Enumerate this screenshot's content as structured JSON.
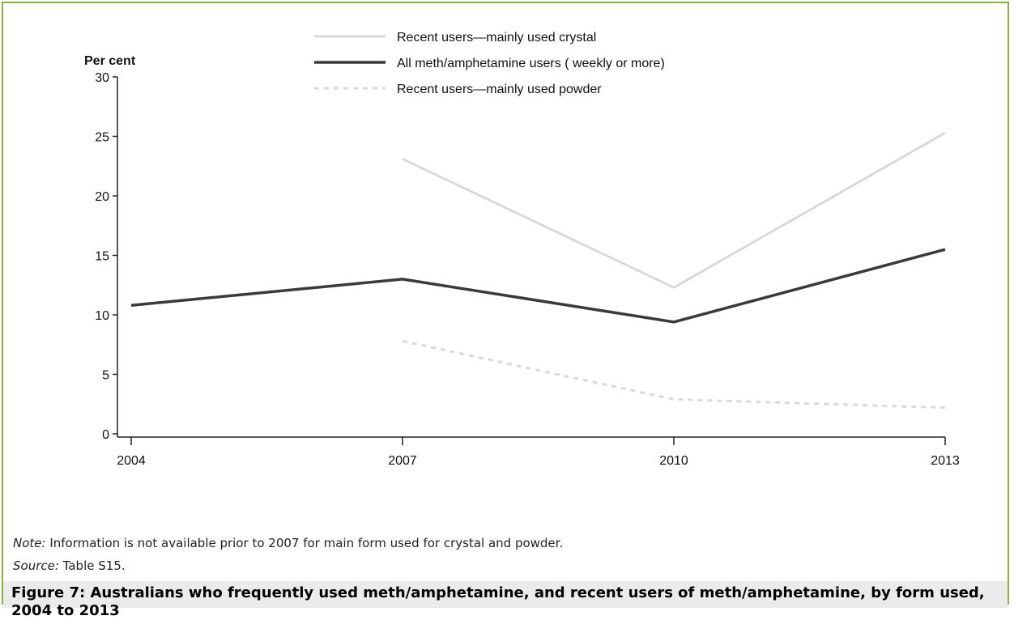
{
  "figure": {
    "title": "Figure 7: Australians who frequently used meth/amphetamine, and recent users of meth/amphetamine, by form used, 2004 to 2013",
    "note_label": "Note:",
    "note_text": " Information is not available prior to 2007 for main form used for crystal and powder.",
    "source_label": "Source:",
    "source_text": " Table S15."
  },
  "colors": {
    "frame_border": "#8ab03e",
    "crystal": "#d9d9d9",
    "all_users": "#3a3a3a",
    "powder": "#d9d9d9"
  },
  "chart_data": {
    "type": "line",
    "ylabel": "Per cent",
    "xlabel": "",
    "categories": [
      "2004",
      "2007",
      "2010",
      "2013"
    ],
    "ylim": [
      0,
      30
    ],
    "yticks": [
      0,
      5,
      10,
      15,
      20,
      25,
      30
    ],
    "grid": false,
    "legend_position": "top",
    "series": [
      {
        "name": "Recent users—mainly used crystal",
        "style": "solid-light",
        "values": [
          null,
          23.1,
          12.3,
          25.3
        ]
      },
      {
        "name": "All meth/amphetamine users ( weekly or more)",
        "style": "solid-dark",
        "values": [
          10.8,
          13.0,
          9.4,
          15.5
        ]
      },
      {
        "name": "Recent users—mainly used powder",
        "style": "dashed-light",
        "values": [
          null,
          7.8,
          2.9,
          2.2
        ]
      }
    ]
  }
}
